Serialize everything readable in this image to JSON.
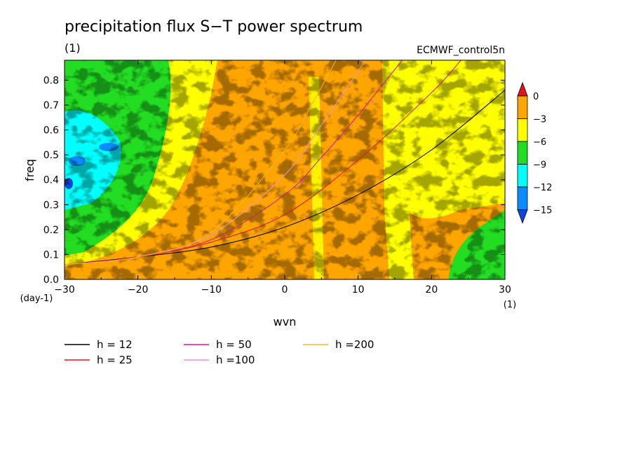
{
  "chart_data": {
    "type": "heatmap",
    "title": "precipitation flux S−T power spectrum",
    "units_label": "(1)",
    "dataset": "ECMWF_control5n",
    "xlabel": "wvn",
    "ylabel": "freq",
    "x_units": "(1)",
    "y_units": "(day-1)",
    "xlim": [
      -30,
      30
    ],
    "ylim": [
      0,
      0.88
    ],
    "x_ticks": [
      -30,
      -20,
      -10,
      0,
      10,
      20,
      30
    ],
    "x_tick_labels": [
      "−30",
      "−20",
      "−10",
      "0",
      "10",
      "20",
      "30"
    ],
    "y_ticks": [
      0,
      0.1,
      0.2,
      0.3,
      0.4,
      0.5,
      0.6,
      0.7,
      0.8
    ],
    "y_tick_labels": [
      "0.0",
      "0.1",
      "0.2",
      "0.3",
      "0.4",
      "0.5",
      "0.6",
      "0.7",
      "0.8"
    ],
    "colorbar": {
      "levels": [
        0,
        -3,
        -6,
        -9,
        -12,
        -15
      ],
      "level_labels": [
        "0",
        "−3",
        "−6",
        "−9",
        "−12",
        "−15"
      ],
      "colors": [
        "#e8101a",
        "#ffa500",
        "#ffff00",
        "#22dd22",
        "#00ffff",
        "#0a8cff",
        "#1046e0"
      ]
    },
    "series": [
      {
        "name": "h = 12",
        "h": 12,
        "color": "#000000",
        "wvn": [
          -30,
          -20,
          -10,
          0,
          10,
          20,
          30
        ],
        "freq": [
          0.06,
          0.09,
          0.13,
          0.21,
          0.34,
          0.52,
          0.76
        ]
      },
      {
        "name": "h = 25",
        "h": 25,
        "color": "#e8141e",
        "wvn": [
          -30,
          -20,
          -10,
          0,
          10,
          20,
          24
        ],
        "freq": [
          0.06,
          0.09,
          0.15,
          0.26,
          0.48,
          0.75,
          0.88
        ]
      },
      {
        "name": "h = 50",
        "h": 50,
        "color": "#e0108c",
        "wvn": [
          -30,
          -20,
          -10,
          0,
          5,
          10,
          16
        ],
        "freq": [
          0.06,
          0.09,
          0.16,
          0.34,
          0.49,
          0.66,
          0.88
        ]
      },
      {
        "name": "h =100",
        "h": 100,
        "color": "#e896d6",
        "wvn": [
          -30,
          -20,
          -10,
          0,
          5,
          11
        ],
        "freq": [
          0.06,
          0.09,
          0.18,
          0.42,
          0.62,
          0.88
        ]
      },
      {
        "name": "h =200",
        "h": 200,
        "color": "#f5b82a",
        "wvn": [
          -30,
          -20,
          -10,
          0,
          4,
          7
        ],
        "freq": [
          0.06,
          0.09,
          0.19,
          0.52,
          0.72,
          0.88
        ]
      }
    ]
  }
}
